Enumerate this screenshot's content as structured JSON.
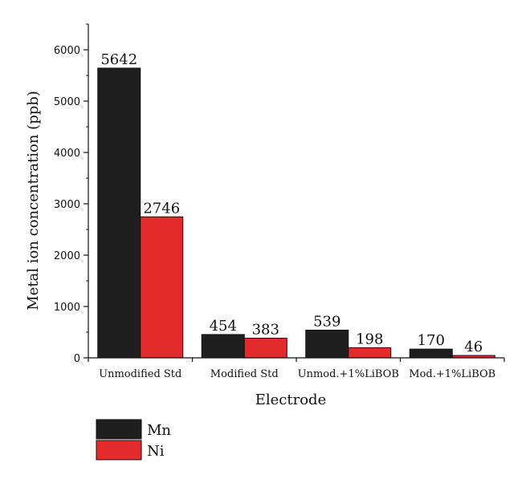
{
  "chart_data": {
    "type": "bar",
    "categories": [
      "Unmodified Std",
      "Modified Std",
      "Unmod.+1%LiBOB",
      "Mod.+1%LiBOB"
    ],
    "series": [
      {
        "name": "Mn",
        "values": [
          5642,
          454,
          539,
          170
        ],
        "color": "#1f1f1f"
      },
      {
        "name": "Ni",
        "values": [
          2746,
          383,
          198,
          46
        ],
        "color": "#e32b2b"
      }
    ],
    "data_labels": [
      [
        "5642",
        "454",
        "539",
        "170"
      ],
      [
        "2746",
        "383",
        "198",
        "46"
      ]
    ],
    "xlabel": "Electrode",
    "ylabel": "Metal ion concentration (ppb)",
    "ylim": [
      0,
      6500
    ],
    "yticks": [
      0,
      1000,
      2000,
      3000,
      4000,
      5000,
      6000
    ],
    "grid": false,
    "legend_position": "bottom-left"
  }
}
